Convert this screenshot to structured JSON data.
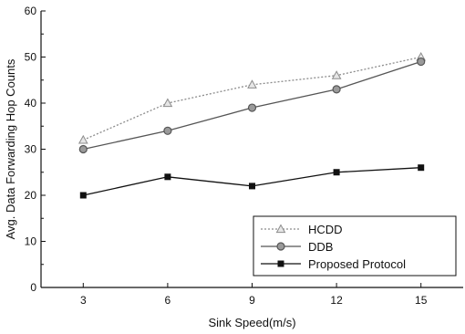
{
  "chart_data": {
    "type": "line",
    "title": "",
    "xlabel": "Sink Speed(m/s)",
    "ylabel": "Avg. Data Forwarding Hop Counts",
    "x": [
      3,
      6,
      9,
      12,
      15
    ],
    "xlim": [
      1.5,
      16.5
    ],
    "ylim": [
      0,
      60
    ],
    "xticks": [
      3,
      6,
      9,
      12,
      15
    ],
    "yticks": [
      0,
      10,
      20,
      30,
      40,
      50,
      60
    ],
    "grid": false,
    "legend_position": "bottom-right",
    "series": [
      {
        "name": "HCDD",
        "values": [
          32,
          40,
          44,
          46,
          50
        ],
        "marker": "triangle",
        "line_style": "dotted",
        "color": "#8c8c8c"
      },
      {
        "name": "DDB",
        "values": [
          30,
          34,
          39,
          43,
          49
        ],
        "marker": "circle",
        "line_style": "solid",
        "color": "#555555"
      },
      {
        "name": "Proposed Protocol",
        "values": [
          20,
          24,
          22,
          25,
          26
        ],
        "marker": "square",
        "line_style": "solid",
        "color": "#111111"
      }
    ]
  }
}
